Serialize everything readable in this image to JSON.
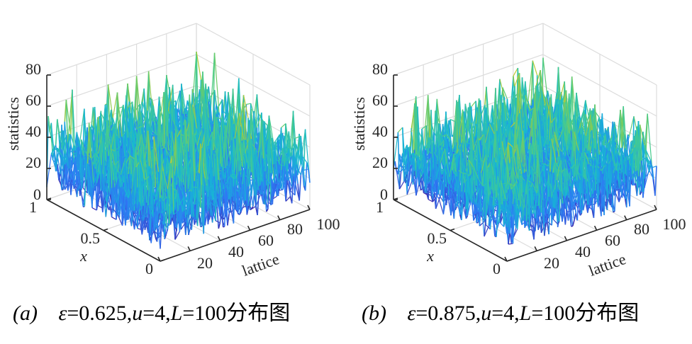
{
  "chart_data": [
    {
      "type": "surface",
      "panel": "(a)",
      "caption": {
        "tag": "(a)",
        "eps_symbol": "ε",
        "eps_value": "=0.625,",
        "u_symbol": "u",
        "u_value": "=4,",
        "L_symbol": "L",
        "L_value": "=100",
        "suffix": "分布图"
      },
      "zlabel": "statistics",
      "ylabel": "x",
      "xlabel": "lattice",
      "zticks": [
        "0",
        "20",
        "40",
        "60",
        "80"
      ],
      "yticks": [
        "0",
        "0.5",
        "1"
      ],
      "xticks": [
        "20",
        "40",
        "60",
        "80",
        "100"
      ],
      "xlim": [
        0,
        100
      ],
      "ylim": [
        0,
        1
      ],
      "zlim": [
        0,
        80
      ],
      "grid": true,
      "data_summary": {
        "mean": 25,
        "min": 8,
        "max": 68
      },
      "colormap": [
        "#3e26a8",
        "#2f77f6",
        "#16b7d4",
        "#49cc8a",
        "#a6c93a",
        "#e4cc2a"
      ]
    },
    {
      "type": "surface",
      "panel": "(b)",
      "caption": {
        "tag": "(b)",
        "eps_symbol": "ε",
        "eps_value": "=0.875,",
        "u_symbol": "u",
        "u_value": "=4,",
        "L_symbol": "L",
        "L_value": "=100",
        "suffix": "分布图"
      },
      "zlabel": "statistics",
      "ylabel": "x",
      "xlabel": "lattice",
      "zticks": [
        "0",
        "20",
        "40",
        "60",
        "80"
      ],
      "yticks": [
        "0",
        "0.5",
        "1"
      ],
      "xticks": [
        "20",
        "40",
        "60",
        "80",
        "100"
      ],
      "xlim": [
        0,
        100
      ],
      "ylim": [
        0,
        1
      ],
      "zlim": [
        0,
        80
      ],
      "grid": true,
      "data_summary": {
        "mean": 25,
        "min": 8,
        "max": 65
      },
      "colormap": [
        "#3e26a8",
        "#2f77f6",
        "#16b7d4",
        "#49cc8a",
        "#a6c93a",
        "#e4cc2a"
      ]
    }
  ]
}
